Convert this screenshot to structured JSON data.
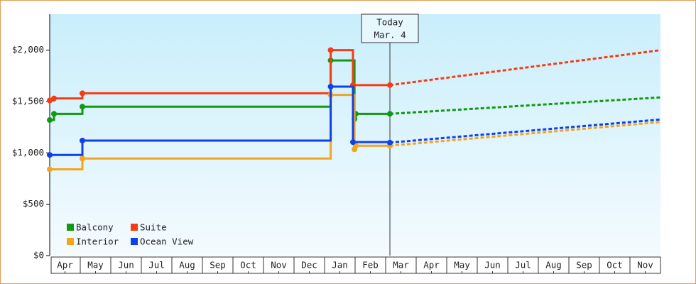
{
  "chart_data": {
    "type": "step-line",
    "xlim": [
      0,
      20
    ],
    "ylim": [
      0,
      2350
    ],
    "xticks": [
      {
        "value": 0.5,
        "label": "Apr"
      },
      {
        "value": 1.5,
        "label": "May"
      },
      {
        "value": 2.5,
        "label": "Jun"
      },
      {
        "value": 3.5,
        "label": "Jul"
      },
      {
        "value": 4.5,
        "label": "Aug"
      },
      {
        "value": 5.5,
        "label": "Sep"
      },
      {
        "value": 6.5,
        "label": "Oct"
      },
      {
        "value": 7.5,
        "label": "Nov"
      },
      {
        "value": 8.5,
        "label": "Dec"
      },
      {
        "value": 9.5,
        "label": "Jan"
      },
      {
        "value": 10.5,
        "label": "Feb"
      },
      {
        "value": 11.5,
        "label": "Mar"
      },
      {
        "value": 12.5,
        "label": "Apr"
      },
      {
        "value": 13.5,
        "label": "May"
      },
      {
        "value": 14.5,
        "label": "Jun"
      },
      {
        "value": 15.5,
        "label": "Jul"
      },
      {
        "value": 16.5,
        "label": "Aug"
      },
      {
        "value": 17.5,
        "label": "Sep"
      },
      {
        "value": 18.5,
        "label": "Oct"
      },
      {
        "value": 19.5,
        "label": "Nov"
      }
    ],
    "yticks": [
      {
        "value": 0,
        "label": "$0"
      },
      {
        "value": 500,
        "label": "$500"
      },
      {
        "value": 1000,
        "label": "$1,000"
      },
      {
        "value": 1500,
        "label": "$1,500"
      },
      {
        "value": 2000,
        "label": "$2,000"
      }
    ],
    "legend": "lower left",
    "today": {
      "x": 11.14,
      "label": [
        "Today",
        "Mar. 4"
      ]
    },
    "series": [
      {
        "name": "Balcony",
        "color": "#119911",
        "x": [
          0,
          0.14,
          1.07,
          9.2,
          9.98,
          10.02,
          11.14
        ],
        "values": [
          1320,
          1380,
          1450,
          1900,
          1330,
          1380,
          1380
        ],
        "projection_x": [
          11.14,
          20
        ],
        "projection_values": [
          1380,
          1540
        ]
      },
      {
        "name": "Suite",
        "color": "#f53c14",
        "x": [
          0,
          0.14,
          1.07,
          9.2,
          9.93,
          11.14
        ],
        "values": [
          1510,
          1530,
          1580,
          2000,
          1660,
          1660
        ],
        "projection_x": [
          11.14,
          20
        ],
        "projection_values": [
          1660,
          2000
        ]
      },
      {
        "name": "Interior",
        "color": "#f5a41e",
        "x": [
          0,
          1.07,
          9.2,
          9.98,
          10.02,
          11.14
        ],
        "values": [
          840,
          945,
          1565,
          1035,
          1070,
          1070
        ],
        "projection_x": [
          11.14,
          20
        ],
        "projection_values": [
          1070,
          1300
        ]
      },
      {
        "name": "Ocean View",
        "color": "#1040e8",
        "x": [
          0,
          1.07,
          9.2,
          9.93,
          11.14
        ],
        "values": [
          980,
          1120,
          1645,
          1105,
          1100
        ],
        "projection_x": [
          11.14,
          20
        ],
        "projection_values": [
          1100,
          1325
        ]
      }
    ]
  }
}
